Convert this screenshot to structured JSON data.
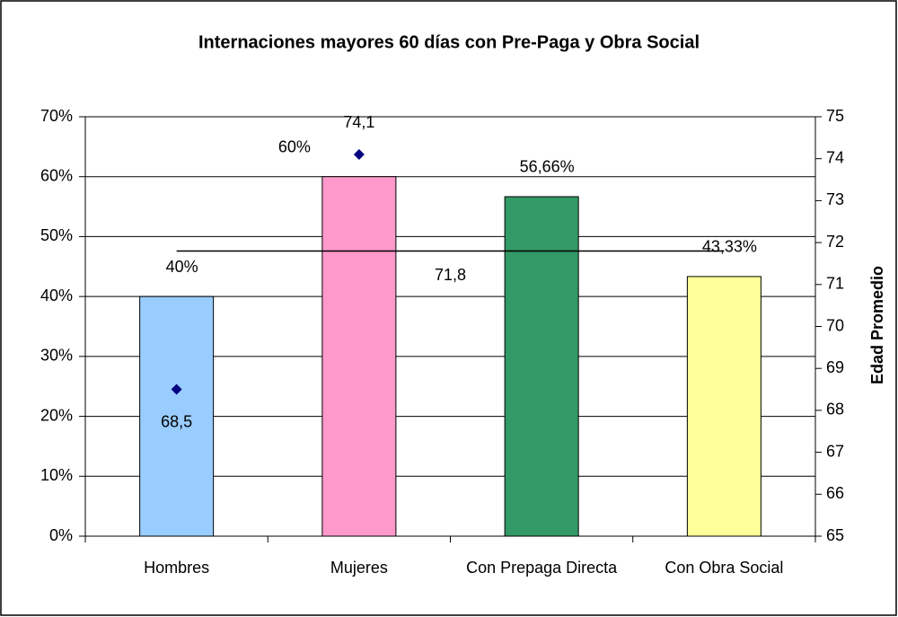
{
  "chart_data": {
    "type": "bar",
    "title": "Internaciones mayores 60 días con Pre-Paga y Obra Social",
    "y2_label": "Edad Promedio",
    "categories": [
      "Hombres",
      "Mujeres",
      "Con Prepaga Directa",
      "Con Obra Social"
    ],
    "series": [
      {
        "type": "bar",
        "values": [
          40,
          60,
          56.66,
          43.33
        ],
        "value_labels": [
          "40%",
          "60%",
          "56,66%",
          "43,33%"
        ],
        "colors": [
          "#99ccff",
          "#ff99cc",
          "#339966",
          "#ffff99"
        ]
      },
      {
        "type": "scatter",
        "axis": "y2",
        "color": "#000080",
        "values": [
          68.5,
          74.1,
          null,
          null
        ],
        "value_labels": [
          "68,5",
          "74,1",
          null,
          null
        ]
      }
    ],
    "mean": {
      "value": 71.8,
      "label": "71,8",
      "axis": "y2",
      "color": "#000000"
    },
    "ylim": [
      0,
      70
    ],
    "yticks": [
      {
        "value": 0,
        "label": "0%"
      },
      {
        "value": 10,
        "label": "10%"
      },
      {
        "value": 20,
        "label": "20%"
      },
      {
        "value": 30,
        "label": "30%"
      },
      {
        "value": 40,
        "label": "40%"
      },
      {
        "value": 50,
        "label": "50%"
      },
      {
        "value": 60,
        "label": "60%"
      },
      {
        "value": 70,
        "label": "70%"
      }
    ],
    "y2lim": [
      65,
      75
    ],
    "y2ticks": [
      65,
      66,
      67,
      68,
      69,
      70,
      71,
      72,
      73,
      74,
      75
    ],
    "grid": true
  }
}
